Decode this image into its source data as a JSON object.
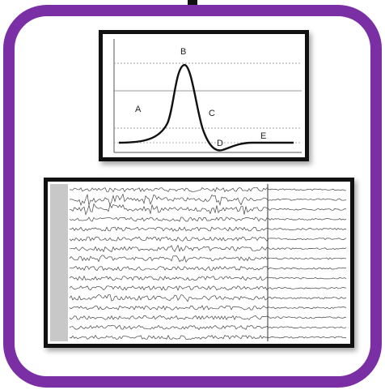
{
  "illustration": {
    "frame_color": "#7a2fa5",
    "icon": "waveform-icon"
  },
  "waveform_diagram": {
    "labels": {
      "A": "A",
      "B": "B",
      "C": "C",
      "D": "D",
      "E": "E"
    }
  },
  "eeg_trace": {
    "channel_count": 16
  }
}
